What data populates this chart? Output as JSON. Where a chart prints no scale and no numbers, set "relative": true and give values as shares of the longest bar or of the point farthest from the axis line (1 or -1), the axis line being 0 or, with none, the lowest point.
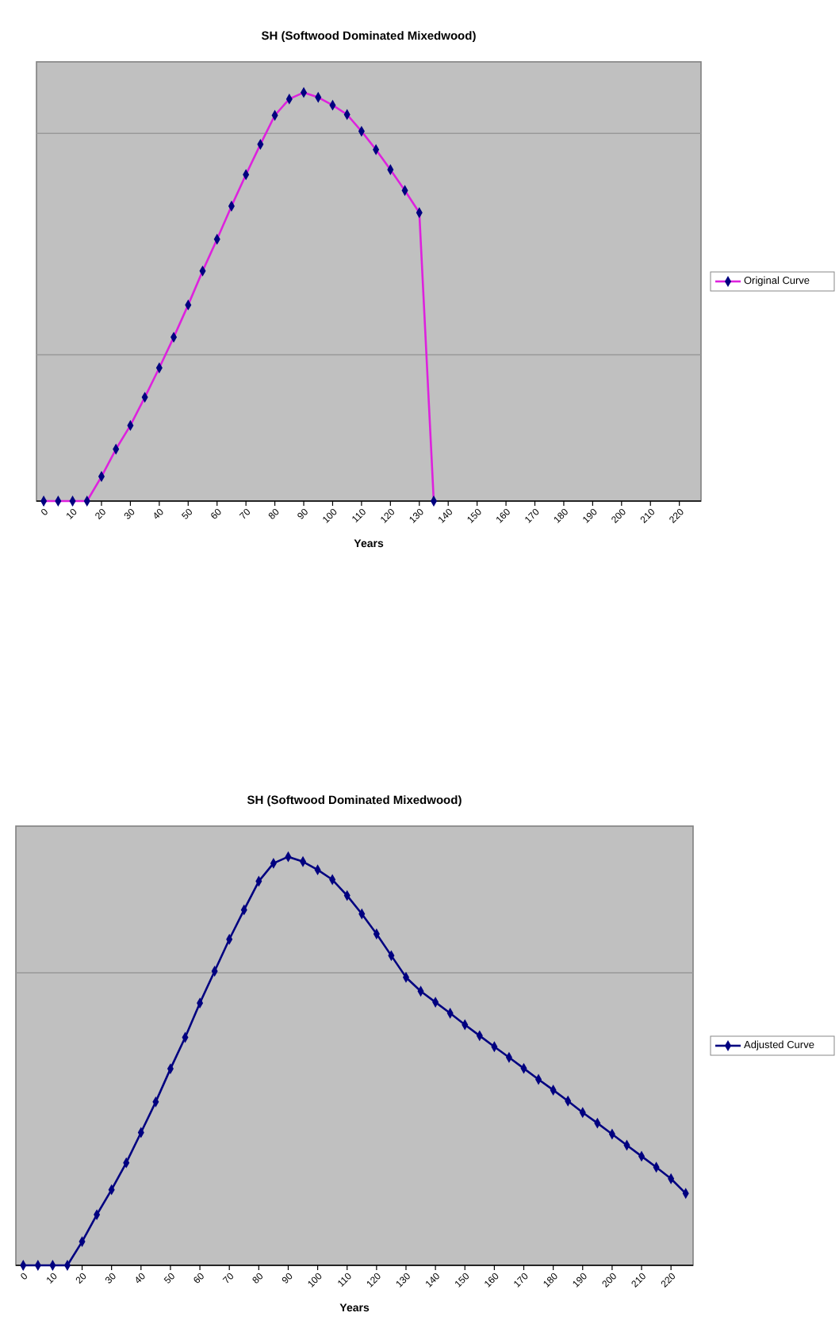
{
  "chart_data": [
    {
      "type": "line",
      "title": "SH (Softwood Dominated Mixedwood)",
      "xlabel": "Years",
      "relative": true,
      "marker": "diamond",
      "legend": "right",
      "xlim": [
        -2.5,
        227.5
      ],
      "xticks": [
        0,
        10,
        20,
        30,
        40,
        50,
        60,
        70,
        80,
        90,
        100,
        110,
        120,
        130,
        140,
        150,
        160,
        170,
        180,
        190,
        200,
        210,
        220
      ],
      "x": [
        0,
        5,
        10,
        15,
        20,
        25,
        30,
        35,
        40,
        45,
        50,
        55,
        60,
        65,
        70,
        75,
        80,
        85,
        90,
        95,
        100,
        105,
        110,
        115,
        120,
        125,
        130,
        135
      ],
      "series": [
        {
          "name": "Original Curve",
          "color": "#dd22dd",
          "values": [
            0,
            0,
            0,
            0,
            0.06,
            0.127,
            0.185,
            0.254,
            0.326,
            0.401,
            0.48,
            0.563,
            0.641,
            0.722,
            0.799,
            0.873,
            0.944,
            0.984,
            1,
            0.988,
            0.969,
            0.946,
            0.905,
            0.86,
            0.811,
            0.76,
            0.706,
            0
          ]
        }
      ],
      "ref_lines": [
        {
          "axis": "y",
          "value": 0.358,
          "color": "#999999"
        },
        {
          "axis": "y",
          "value": 0.9,
          "color": "#999999"
        }
      ]
    },
    {
      "type": "line",
      "title": "SH (Softwood Dominated Mixedwood)",
      "xlabel": "Years",
      "relative": true,
      "marker": "diamond",
      "legend": "right",
      "xlim": [
        -2.5,
        227.5
      ],
      "xticks": [
        0,
        10,
        20,
        30,
        40,
        50,
        60,
        70,
        80,
        90,
        100,
        110,
        120,
        130,
        140,
        150,
        160,
        170,
        180,
        190,
        200,
        210,
        220
      ],
      "x": [
        0,
        5,
        10,
        15,
        20,
        25,
        30,
        35,
        40,
        45,
        50,
        55,
        60,
        65,
        70,
        75,
        80,
        85,
        90,
        95,
        100,
        105,
        110,
        115,
        120,
        125,
        130,
        135,
        140,
        145,
        150,
        155,
        160,
        165,
        170,
        175,
        180,
        185,
        190,
        195,
        200,
        205,
        210,
        215,
        220,
        225
      ],
      "series": [
        {
          "name": "Adjusted Curve",
          "color": "#000080",
          "values": [
            0,
            0,
            0,
            0,
            0.058,
            0.124,
            0.185,
            0.251,
            0.325,
            0.4,
            0.481,
            0.558,
            0.642,
            0.72,
            0.798,
            0.87,
            0.94,
            0.984,
            1,
            0.988,
            0.968,
            0.944,
            0.905,
            0.86,
            0.811,
            0.758,
            0.705,
            0.671,
            0.644,
            0.617,
            0.589,
            0.562,
            0.535,
            0.509,
            0.482,
            0.455,
            0.429,
            0.402,
            0.374,
            0.348,
            0.321,
            0.294,
            0.267,
            0.24,
            0.212,
            0.176
          ]
        }
      ],
      "ref_lines": [
        {
          "axis": "y",
          "value": 0.716,
          "color": "#999999"
        }
      ]
    }
  ]
}
